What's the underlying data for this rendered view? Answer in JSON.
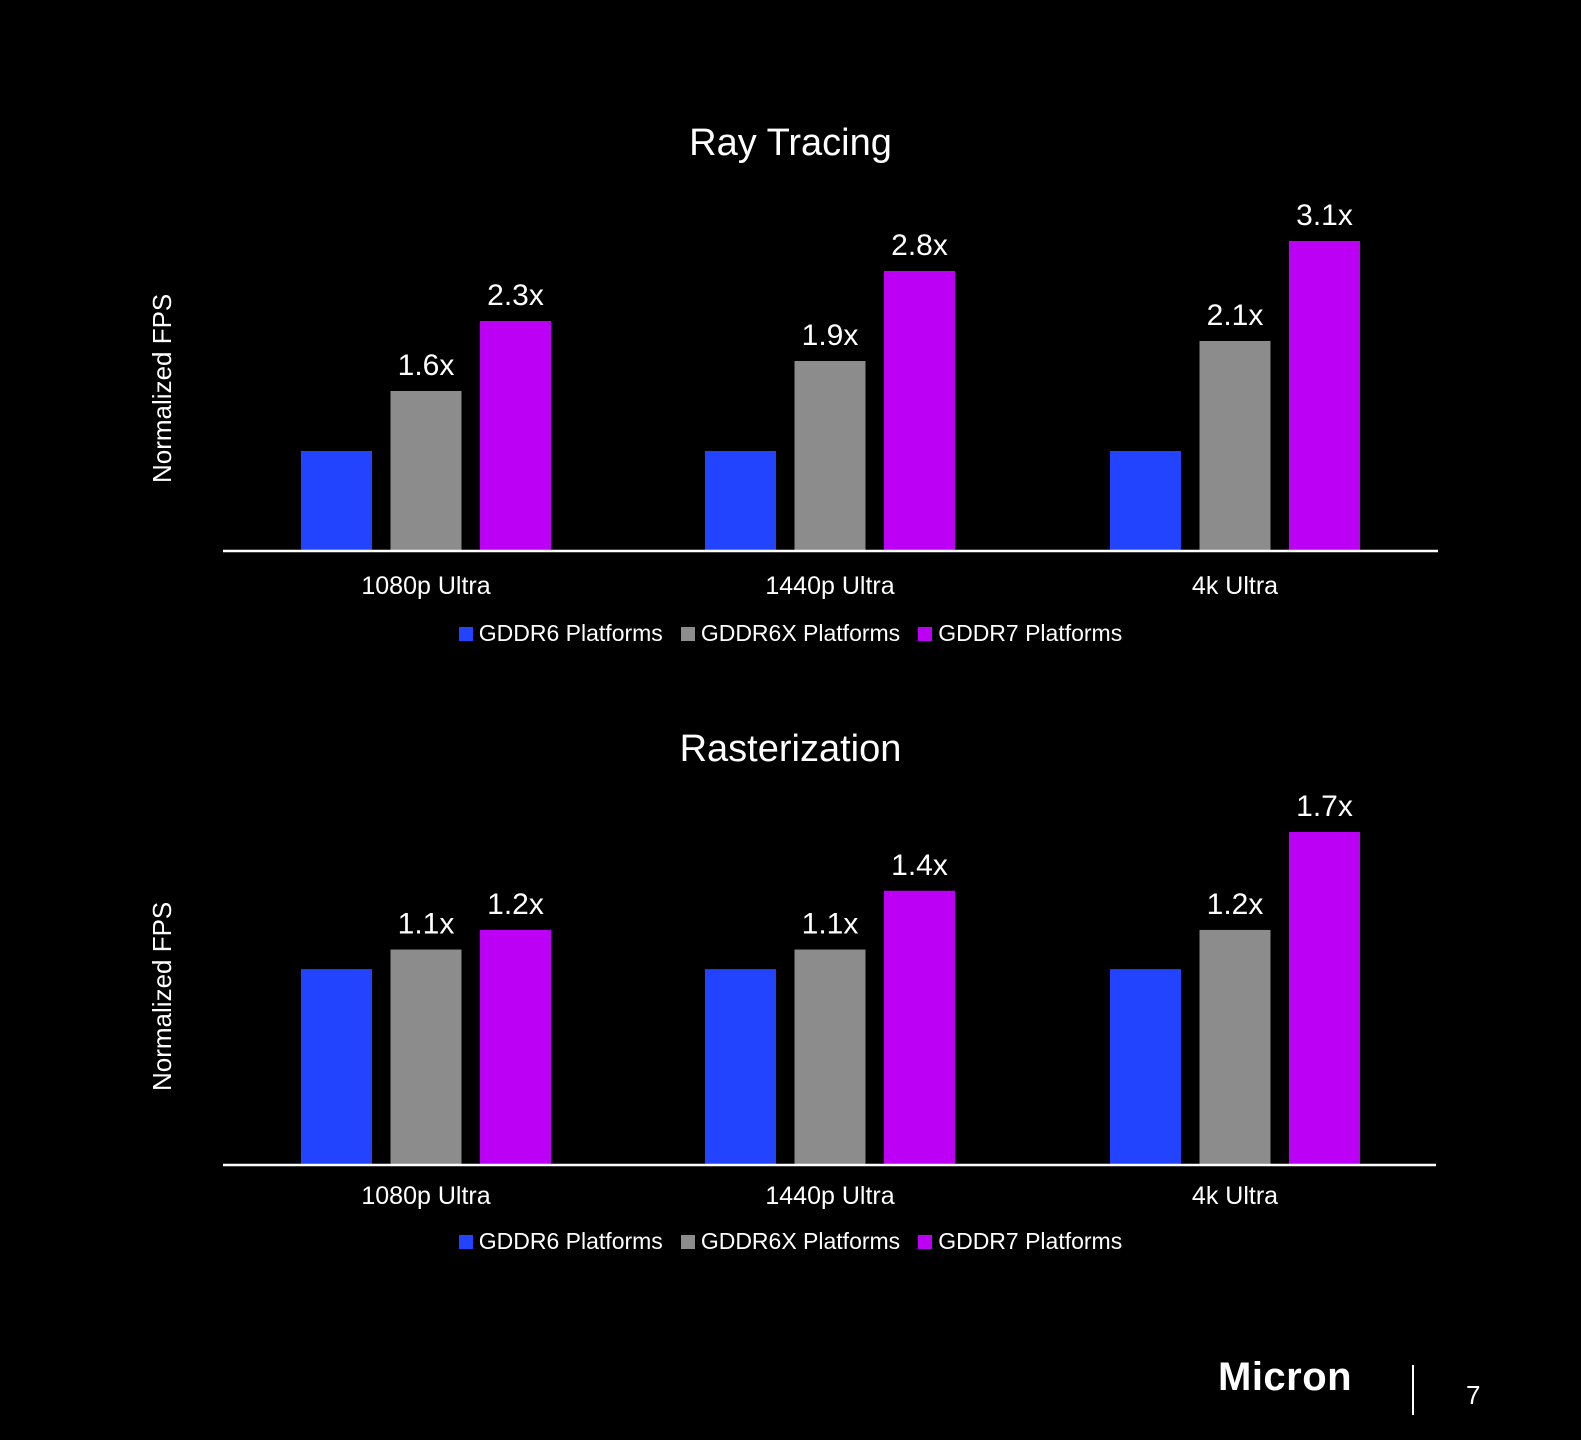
{
  "chart_data": [
    {
      "type": "bar",
      "title": "Ray Tracing",
      "ylabel": "Normalized FPS",
      "categories": [
        "1080p Ultra",
        "1440p Ultra",
        "4k Ultra"
      ],
      "series": [
        {
          "name": "GDDR6 Platforms",
          "values": [
            1.0,
            1.0,
            1.0
          ],
          "labels": [
            "",
            "",
            ""
          ]
        },
        {
          "name": "GDDR6X Platforms",
          "values": [
            1.6,
            1.9,
            2.1
          ],
          "labels": [
            "1.6x",
            "1.9x",
            "2.1x"
          ]
        },
        {
          "name": "GDDR7 Platforms",
          "values": [
            2.3,
            2.8,
            3.1
          ],
          "labels": [
            "2.3x",
            "2.8x",
            "3.1x"
          ]
        }
      ],
      "ylim": [
        0,
        3.1
      ],
      "legend": "bottom"
    },
    {
      "type": "bar",
      "title": "Rasterization",
      "ylabel": "Normalized FPS",
      "categories": [
        "1080p Ultra",
        "1440p Ultra",
        "4k Ultra"
      ],
      "series": [
        {
          "name": "GDDR6 Platforms",
          "values": [
            1.0,
            1.0,
            1.0
          ],
          "labels": [
            "",
            "",
            ""
          ]
        },
        {
          "name": "GDDR6X Platforms",
          "values": [
            1.1,
            1.1,
            1.2
          ],
          "labels": [
            "1.1x",
            "1.1x",
            "1.2x"
          ]
        },
        {
          "name": "GDDR7 Platforms",
          "values": [
            1.2,
            1.4,
            1.7
          ],
          "labels": [
            "1.2x",
            "1.4x",
            "1.7x"
          ]
        }
      ],
      "ylim": [
        0,
        1.7
      ],
      "legend": "bottom"
    }
  ],
  "colors": {
    "gddr6": "#2244ff",
    "gddr6x": "#8c8c8c",
    "gddr7": "#bb00f5",
    "background": "#000000",
    "text": "#ffffff"
  },
  "footer": {
    "logo": "Micron",
    "page_number": "7"
  }
}
